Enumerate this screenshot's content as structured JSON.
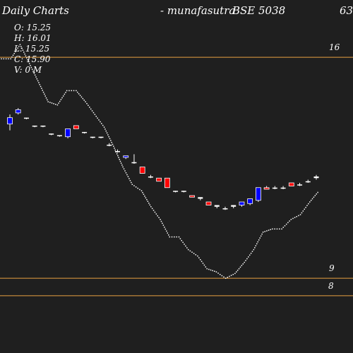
{
  "header": {
    "left_title": "Daily Charts",
    "center_title": "- munafasutra",
    "right_title": "BSE 5038",
    "corner_text": "63"
  },
  "ohlc": {
    "open": "O: 15.25",
    "high": "H: 16.01",
    "low": "L: 15.25",
    "close": "C: 15.90",
    "volume": "V: 0  M"
  },
  "colors": {
    "background": "#1f1f1f",
    "level_line": "#e8a040",
    "up_candle": "#0000ff",
    "down_candle": "#ff0000",
    "neutral_candle": "#ffffff",
    "dotted_line": "#ffffff"
  },
  "chart_data": {
    "type": "candlestick",
    "ylim": [
      6.2,
      17.3
    ],
    "levels": [
      {
        "label": "16",
        "value": 15.5
      },
      {
        "label": "9",
        "value": 8.55
      },
      {
        "label": "8",
        "value": 8.0
      }
    ],
    "candles": [
      {
        "o": 13.4,
        "h": 13.7,
        "l": 13.2,
        "c": 13.6,
        "dir": "up"
      },
      {
        "o": 13.75,
        "h": 13.9,
        "l": 13.7,
        "c": 13.85,
        "dir": "up"
      },
      {
        "o": 13.6,
        "h": 13.6,
        "l": 13.55,
        "c": 13.6,
        "dir": "flat"
      },
      {
        "o": 13.35,
        "h": 13.35,
        "l": 13.3,
        "c": 13.35,
        "dir": "flat"
      },
      {
        "o": 13.35,
        "h": 13.35,
        "l": 13.3,
        "c": 13.35,
        "dir": "flat"
      },
      {
        "o": 13.1,
        "h": 13.1,
        "l": 13.05,
        "c": 13.1,
        "dir": "flat"
      },
      {
        "o": 13.05,
        "h": 13.05,
        "l": 13.0,
        "c": 13.05,
        "dir": "flat"
      },
      {
        "o": 13.0,
        "h": 13.25,
        "l": 12.95,
        "c": 13.25,
        "dir": "up"
      },
      {
        "o": 13.35,
        "h": 13.35,
        "l": 13.25,
        "c": 13.25,
        "dir": "down"
      },
      {
        "o": 13.15,
        "h": 13.15,
        "l": 13.1,
        "c": 13.15,
        "dir": "flat"
      },
      {
        "o": 13.0,
        "h": 13.0,
        "l": 12.95,
        "c": 13.0,
        "dir": "flat"
      },
      {
        "o": 13.0,
        "h": 13.0,
        "l": 12.95,
        "c": 13.0,
        "dir": "flat"
      },
      {
        "o": 12.75,
        "h": 12.8,
        "l": 12.7,
        "c": 12.75,
        "dir": "flat"
      },
      {
        "o": 12.55,
        "h": 12.6,
        "l": 12.5,
        "c": 12.55,
        "dir": "flat"
      },
      {
        "o": 12.35,
        "h": 12.4,
        "l": 12.3,
        "c": 12.4,
        "dir": "up"
      },
      {
        "o": 12.2,
        "h": 12.45,
        "l": 12.15,
        "c": 12.2,
        "dir": "flat"
      },
      {
        "o": 12.05,
        "h": 12.05,
        "l": 11.85,
        "c": 11.85,
        "dir": "down"
      },
      {
        "o": 11.75,
        "h": 11.8,
        "l": 11.7,
        "c": 11.75,
        "dir": "flat"
      },
      {
        "o": 11.7,
        "h": 11.7,
        "l": 11.6,
        "c": 11.6,
        "dir": "down"
      },
      {
        "o": 11.7,
        "h": 11.7,
        "l": 11.4,
        "c": 11.4,
        "dir": "down"
      },
      {
        "o": 11.3,
        "h": 11.3,
        "l": 11.25,
        "c": 11.3,
        "dir": "flat"
      },
      {
        "o": 11.3,
        "h": 11.3,
        "l": 11.25,
        "c": 11.3,
        "dir": "flat"
      },
      {
        "o": 11.15,
        "h": 11.15,
        "l": 11.1,
        "c": 11.1,
        "dir": "down"
      },
      {
        "o": 11.1,
        "h": 11.1,
        "l": 11.0,
        "c": 11.05,
        "dir": "flat"
      },
      {
        "o": 10.95,
        "h": 10.95,
        "l": 10.85,
        "c": 10.85,
        "dir": "down"
      },
      {
        "o": 10.85,
        "h": 10.85,
        "l": 10.75,
        "c": 10.8,
        "dir": "flat"
      },
      {
        "o": 10.75,
        "h": 10.8,
        "l": 10.7,
        "c": 10.75,
        "dir": "flat"
      },
      {
        "o": 10.8,
        "h": 10.85,
        "l": 10.75,
        "c": 10.85,
        "dir": "flat"
      },
      {
        "o": 10.85,
        "h": 10.95,
        "l": 10.8,
        "c": 10.95,
        "dir": "up"
      },
      {
        "o": 10.9,
        "h": 11.05,
        "l": 10.85,
        "c": 11.05,
        "dir": "up"
      },
      {
        "o": 11.0,
        "h": 11.4,
        "l": 10.95,
        "c": 11.4,
        "dir": "up"
      },
      {
        "o": 11.4,
        "h": 11.45,
        "l": 11.35,
        "c": 11.35,
        "dir": "down"
      },
      {
        "o": 11.4,
        "h": 11.45,
        "l": 11.35,
        "c": 11.4,
        "dir": "flat"
      },
      {
        "o": 11.4,
        "h": 11.45,
        "l": 11.35,
        "c": 11.4,
        "dir": "flat"
      },
      {
        "o": 11.55,
        "h": 11.55,
        "l": 11.45,
        "c": 11.45,
        "dir": "down"
      },
      {
        "o": 11.5,
        "h": 11.55,
        "l": 11.45,
        "c": 11.5,
        "dir": "flat"
      },
      {
        "o": 11.6,
        "h": 11.65,
        "l": 11.55,
        "c": 11.6,
        "dir": "flat"
      },
      {
        "o": 11.7,
        "h": 11.8,
        "l": 11.65,
        "c": 11.75,
        "dir": "flat"
      }
    ],
    "dotted_line": [
      15.45,
      15.45,
      15.9,
      15.3,
      14.7,
      14.1,
      14.0,
      14.45,
      14.45,
      14.1,
      13.7,
      13.3,
      12.7,
      12.05,
      11.5,
      11.3,
      10.8,
      10.4,
      9.85,
      9.85,
      9.45,
      9.25,
      8.85,
      8.75,
      8.55,
      8.7,
      9.05,
      9.45,
      10.0,
      10.1,
      10.1,
      10.4,
      10.55,
      10.95,
      11.3
    ]
  }
}
